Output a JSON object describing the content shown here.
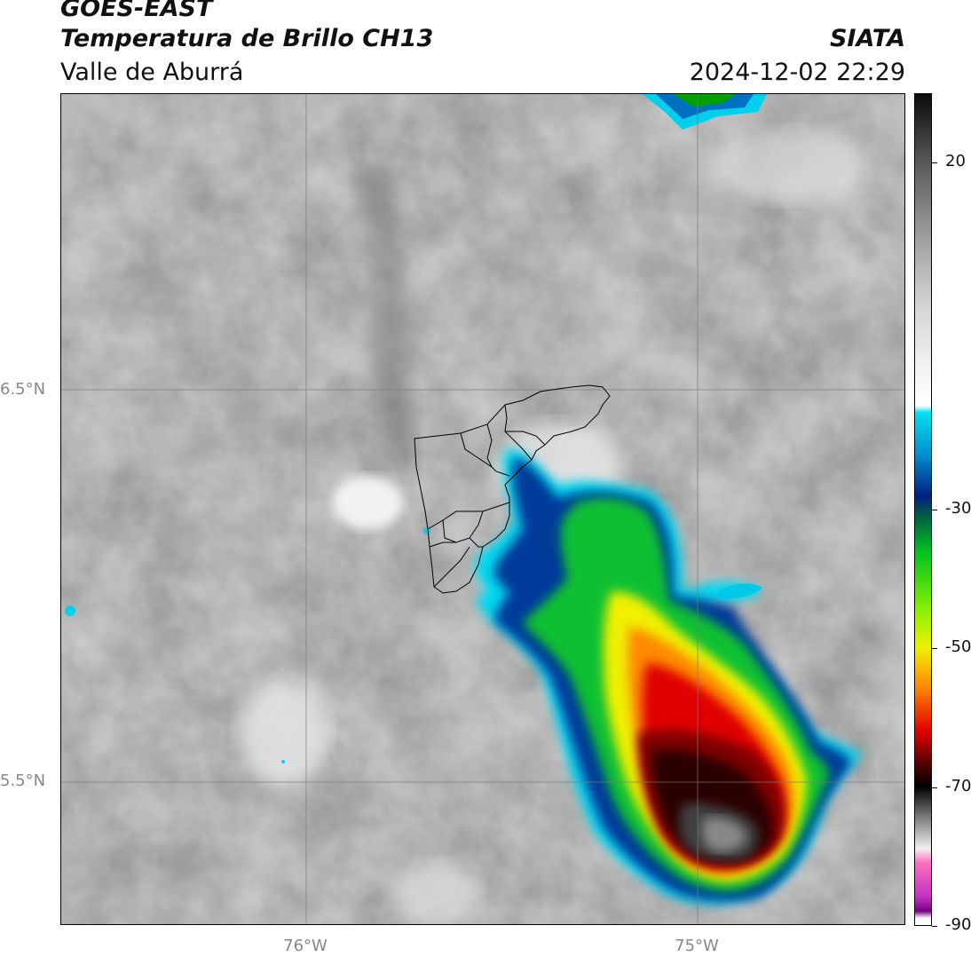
{
  "header": {
    "satellite": "GOES-EAST",
    "product": "Temperatura de Brillo CH13",
    "region": "Valle de Aburrá",
    "agency": "SIATA",
    "datetime": "2024-12-02 22:29"
  },
  "axes": {
    "lat_labels": [
      {
        "label": "6.5°N",
        "value": 6.5
      },
      {
        "label": "5.5°N",
        "value": 5.5
      }
    ],
    "lon_labels": [
      {
        "label": "76°W",
        "value": -76
      },
      {
        "label": "75°W",
        "value": -75
      }
    ]
  },
  "colorbar": {
    "range": [
      -90,
      30
    ],
    "ticks": [
      {
        "label": "20",
        "value": 20
      },
      {
        "label": "-30",
        "value": -30
      },
      {
        "label": "-50",
        "value": -50
      },
      {
        "label": "-70",
        "value": -70
      },
      {
        "label": "-90",
        "value": -90
      }
    ],
    "stops": [
      {
        "value": 30,
        "color": "#0a0a0a"
      },
      {
        "value": 20,
        "color": "#5a5a5a"
      },
      {
        "value": 10,
        "color": "#9a9a9a"
      },
      {
        "value": 0,
        "color": "#d2d2d2"
      },
      {
        "value": -10,
        "color": "#f4f4f4"
      },
      {
        "value": -15,
        "color": "#ffffff"
      },
      {
        "value": -16,
        "color": "#00e0f0"
      },
      {
        "value": -22,
        "color": "#0090d0"
      },
      {
        "value": -28,
        "color": "#002080"
      },
      {
        "value": -31,
        "color": "#006040"
      },
      {
        "value": -36,
        "color": "#00c020"
      },
      {
        "value": -44,
        "color": "#80f000"
      },
      {
        "value": -50,
        "color": "#f0f000"
      },
      {
        "value": -56,
        "color": "#ff8000"
      },
      {
        "value": -62,
        "color": "#e00000"
      },
      {
        "value": -68,
        "color": "#300000"
      },
      {
        "value": -70,
        "color": "#000000"
      },
      {
        "value": -74,
        "color": "#707070"
      },
      {
        "value": -79,
        "color": "#f0f0f0"
      },
      {
        "value": -81,
        "color": "#ff70c0"
      },
      {
        "value": -86,
        "color": "#c030c0"
      },
      {
        "value": -88,
        "color": "#700080"
      },
      {
        "value": -89,
        "color": "#ffffff"
      },
      {
        "value": -90,
        "color": "#ffffff"
      }
    ]
  },
  "storm": {
    "description_colors": {
      "edge_cyan": "#00d8f0",
      "blue": "#003090",
      "green": "#20d020",
      "yellow": "#f0f000",
      "orange": "#ff8000",
      "red": "#e00000",
      "dark_red": "#300000",
      "core": "#404040"
    }
  }
}
